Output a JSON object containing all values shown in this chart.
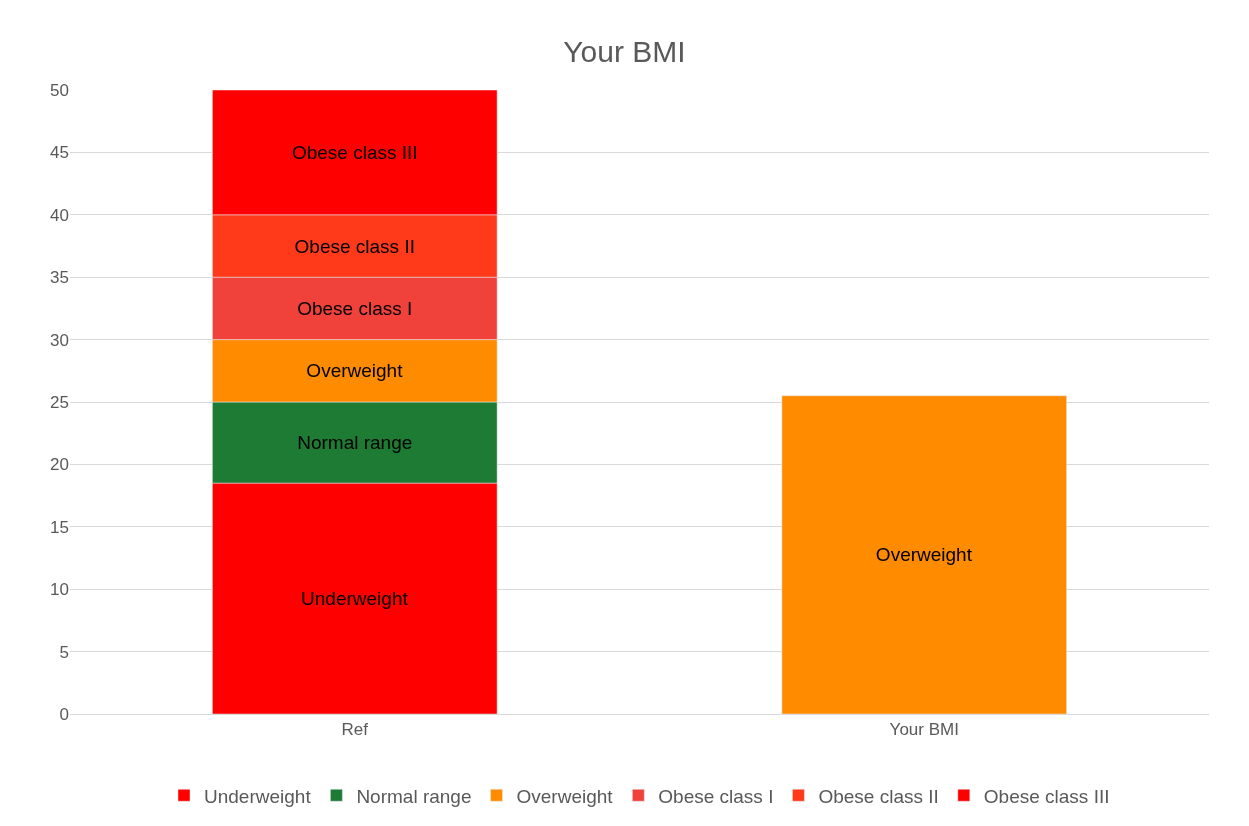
{
  "chart_data": {
    "type": "bar",
    "title": "Your BMI",
    "stacked": true,
    "categories": [
      "Ref",
      "Your BMI"
    ],
    "series": [
      {
        "name": "Underweight",
        "color": "#ff0000",
        "values": [
          18.5,
          null
        ],
        "value_labels": [
          "Underweight",
          null
        ]
      },
      {
        "name": "Normal range",
        "color": "#1e7b34",
        "values": [
          6.5,
          null
        ],
        "value_labels": [
          "Normal range",
          null
        ]
      },
      {
        "name": "Overweight",
        "color": "#ff8c00",
        "values": [
          5,
          25.5
        ],
        "value_labels": [
          "Overweight",
          "Overweight"
        ]
      },
      {
        "name": "Obese class I",
        "color": "#f0423a",
        "values": [
          5,
          null
        ],
        "value_labels": [
          "Obese class I",
          null
        ]
      },
      {
        "name": "Obese class II",
        "color": "#ff3a1a",
        "values": [
          5,
          null
        ],
        "value_labels": [
          "Obese class II",
          null
        ]
      },
      {
        "name": "Obese class III",
        "color": "#ff0000",
        "values": [
          10,
          null
        ],
        "value_labels": [
          "Obese class III",
          null
        ]
      }
    ],
    "ylim": [
      0,
      50
    ],
    "yticks": [
      0,
      5,
      10,
      15,
      20,
      25,
      30,
      35,
      40,
      45,
      50
    ],
    "grid": "y",
    "legend": "bottom"
  }
}
